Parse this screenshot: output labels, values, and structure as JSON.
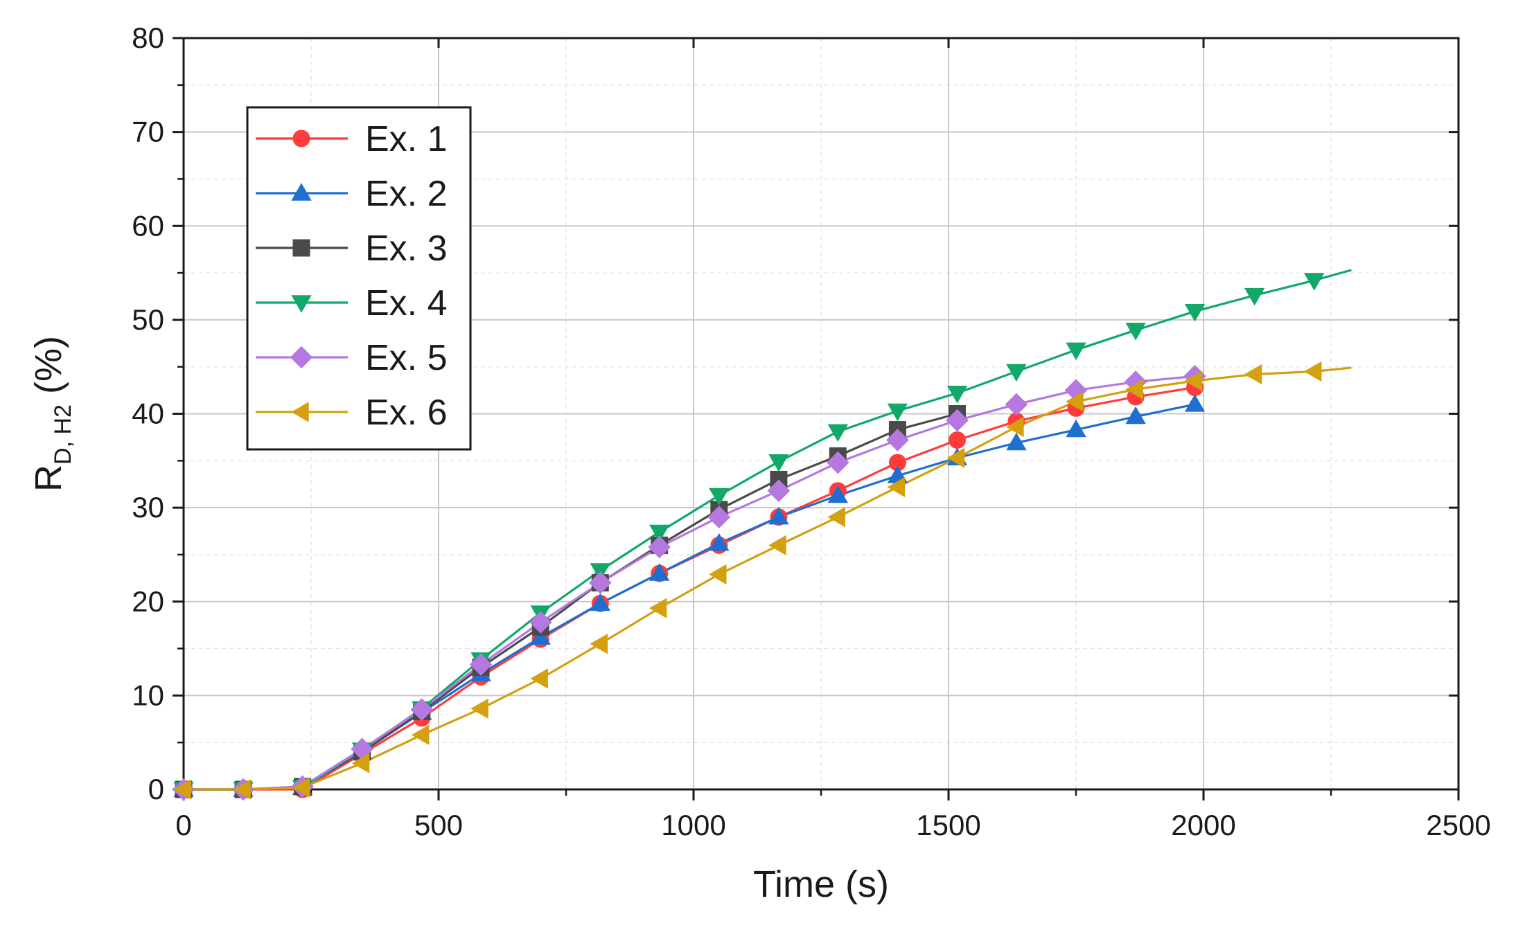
{
  "chart_data": {
    "type": "line",
    "title": "",
    "xlabel": "Time (s)",
    "ylabel": {
      "main": "R",
      "subscript": "D, H2",
      "unit": " (%)"
    },
    "xlim": [
      0,
      2500
    ],
    "ylim": [
      0,
      80
    ],
    "xticks": [
      0,
      500,
      1000,
      1500,
      2000,
      2500
    ],
    "yticks": [
      0,
      10,
      20,
      30,
      40,
      50,
      60,
      70,
      80
    ],
    "grid": true,
    "legend_position": "top-left",
    "series": [
      {
        "name": "Ex. 1",
        "color": "#ff3b3b",
        "marker": "circle",
        "x": [
          0,
          117,
          233,
          350,
          467,
          583,
          700,
          817,
          933,
          1050,
          1167,
          1283,
          1400,
          1517,
          1633,
          1750,
          1867,
          1983
        ],
        "y": [
          0,
          0,
          0,
          3.8,
          7.6,
          12.0,
          16.0,
          19.8,
          23.0,
          26.0,
          29.0,
          31.8,
          34.8,
          37.2,
          39.2,
          40.6,
          41.8,
          42.8
        ]
      },
      {
        "name": "Ex. 2",
        "color": "#1f6fd1",
        "marker": "triangle-up",
        "x": [
          0,
          117,
          233,
          350,
          467,
          583,
          700,
          817,
          933,
          1050,
          1167,
          1283,
          1400,
          1517,
          1633,
          1750,
          1867,
          1983
        ],
        "y": [
          0,
          0,
          0.2,
          4.0,
          8.2,
          12.3,
          16.2,
          19.8,
          23.0,
          26.2,
          29.0,
          31.3,
          33.4,
          35.3,
          36.9,
          38.3,
          39.7,
          41.0
        ]
      },
      {
        "name": "Ex. 3",
        "color": "#4a4a4a",
        "marker": "square",
        "x": [
          0,
          117,
          233,
          350,
          467,
          583,
          700,
          817,
          933,
          1050,
          1167,
          1283,
          1400,
          1517
        ],
        "y": [
          0,
          0,
          0.3,
          4.0,
          8.3,
          13.0,
          17.3,
          22.0,
          26.0,
          29.8,
          33.0,
          35.5,
          38.3,
          40.0
        ]
      },
      {
        "name": "Ex. 4",
        "color": "#11a86a",
        "marker": "triangle-down",
        "x": [
          0,
          117,
          233,
          350,
          467,
          583,
          700,
          817,
          933,
          1050,
          1167,
          1283,
          1400,
          1517,
          1633,
          1750,
          1867,
          1983,
          2100,
          2217,
          2290
        ],
        "y": [
          0,
          0,
          0.2,
          4.2,
          8.6,
          13.8,
          18.8,
          23.3,
          27.4,
          31.3,
          34.9,
          38.1,
          40.3,
          42.2,
          44.5,
          46.8,
          48.9,
          50.9,
          52.6,
          54.2,
          55.3
        ]
      },
      {
        "name": "Ex. 5",
        "color": "#b478e0",
        "marker": "diamond",
        "x": [
          0,
          117,
          233,
          350,
          467,
          583,
          700,
          817,
          933,
          1050,
          1167,
          1283,
          1400,
          1517,
          1633,
          1750,
          1867,
          1983
        ],
        "y": [
          0,
          0,
          0.3,
          4.3,
          8.5,
          13.3,
          17.8,
          22.0,
          25.8,
          29.0,
          31.8,
          34.8,
          37.2,
          39.3,
          41.0,
          42.5,
          43.4,
          44.0
        ]
      },
      {
        "name": "Ex. 6",
        "color": "#d4a00f",
        "marker": "triangle-left",
        "x": [
          0,
          117,
          233,
          350,
          467,
          583,
          700,
          817,
          933,
          1050,
          1167,
          1283,
          1400,
          1517,
          1633,
          1750,
          1867,
          1983,
          2100,
          2217,
          2290
        ],
        "y": [
          0,
          0,
          0.2,
          2.8,
          5.8,
          8.6,
          11.8,
          15.5,
          19.3,
          22.9,
          26.0,
          29.0,
          32.2,
          35.3,
          38.6,
          41.3,
          42.6,
          43.5,
          44.2,
          44.5,
          44.9
        ]
      }
    ]
  }
}
